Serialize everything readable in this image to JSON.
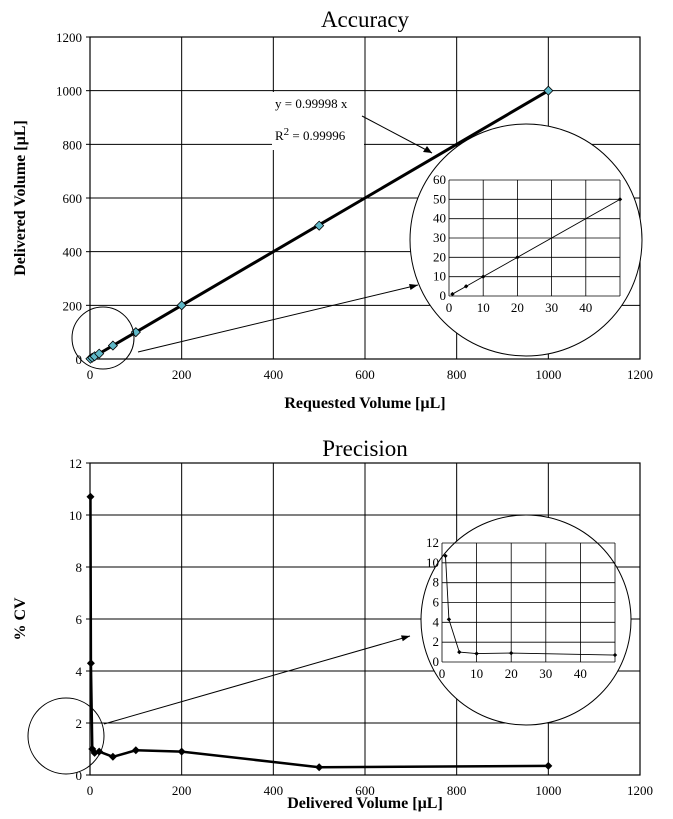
{
  "chart_data": [
    {
      "type": "scatter",
      "title": "Accuracy",
      "xlabel": "Requested Volume [µL]",
      "ylabel": "Delivered Volume [µL]",
      "xlim": [
        0,
        1200
      ],
      "ylim": [
        0,
        1200
      ],
      "x_ticks": [
        0,
        200,
        400,
        600,
        800,
        1000,
        1200
      ],
      "y_ticks": [
        0,
        200,
        400,
        600,
        800,
        1000,
        1200
      ],
      "grid": true,
      "marker_color": "#5fb8c8",
      "series": [
        {
          "x": [
            1,
            5,
            10,
            20,
            50,
            100,
            200,
            500,
            1000
          ],
          "y": [
            1,
            5,
            10,
            20,
            50,
            100,
            200,
            497,
            1000
          ]
        }
      ],
      "trendline": {
        "equation": "y = 0.99998 x",
        "r2_prefix": "R",
        "r2_sup": "2",
        "r2_value": " = 0.99996",
        "slope": 0.99998
      },
      "inset": {
        "xlim": [
          0,
          50
        ],
        "ylim": [
          0,
          60
        ],
        "x_ticks": [
          0,
          10,
          20,
          30,
          40
        ],
        "y_ticks": [
          0,
          10,
          20,
          30,
          40,
          50,
          60
        ],
        "x": [
          1,
          5,
          10,
          20,
          50
        ],
        "y": [
          1,
          5,
          10,
          20,
          50
        ]
      }
    },
    {
      "type": "line",
      "title": "Precision",
      "xlabel": "Delivered Volume [µL]",
      "ylabel": "% CV",
      "xlim": [
        0,
        1200
      ],
      "ylim": [
        0,
        12
      ],
      "x_ticks": [
        0,
        200,
        400,
        600,
        800,
        1000,
        1200
      ],
      "y_ticks": [
        0,
        2,
        4,
        6,
        8,
        10,
        12
      ],
      "grid": true,
      "series": [
        {
          "x": [
            1,
            2,
            5,
            10,
            20,
            50,
            100,
            200,
            500,
            1000
          ],
          "y": [
            10.7,
            4.3,
            1.0,
            0.85,
            0.9,
            0.7,
            0.95,
            0.9,
            0.3,
            0.35
          ]
        }
      ],
      "inset": {
        "xlim": [
          0,
          50
        ],
        "ylim": [
          0,
          12
        ],
        "x_ticks": [
          0,
          10,
          20,
          30,
          40
        ],
        "y_ticks": [
          0,
          2,
          4,
          6,
          8,
          10,
          12
        ],
        "x": [
          1,
          2,
          5,
          10,
          20,
          50
        ],
        "y": [
          10.7,
          4.3,
          1.0,
          0.85,
          0.9,
          0.7
        ]
      }
    }
  ]
}
